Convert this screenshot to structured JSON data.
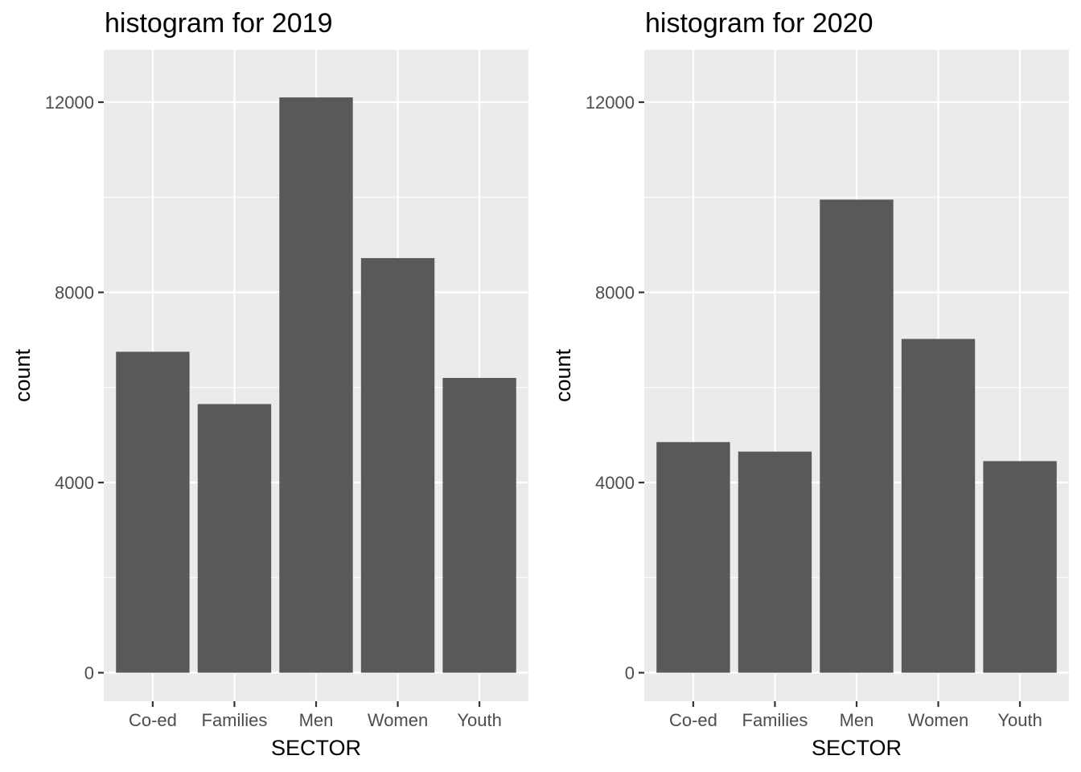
{
  "colors": {
    "panel_background": "#ebebeb",
    "grid_major": "#ffffff",
    "grid_minor": "#f5f5f5",
    "bar_fill": "#595959",
    "tick_text": "#4d4d4d",
    "tick_mark": "#333333"
  },
  "chart_data": [
    {
      "type": "bar",
      "title": "histogram for 2019",
      "xlabel": "SECTOR",
      "ylabel": "count",
      "categories": [
        "Co-ed",
        "Families",
        "Men",
        "Women",
        "Youth"
      ],
      "values": [
        6750,
        5650,
        12100,
        8720,
        6200
      ],
      "ylim": [
        -600,
        13100
      ],
      "yticks": [
        0,
        4000,
        8000,
        12000
      ],
      "ytick_labels": [
        "0",
        "4000",
        "8000",
        "12000"
      ],
      "grid": true
    },
    {
      "type": "bar",
      "title": "histogram for 2020",
      "xlabel": "SECTOR",
      "ylabel": "count",
      "categories": [
        "Co-ed",
        "Families",
        "Men",
        "Women",
        "Youth"
      ],
      "values": [
        4850,
        4650,
        9950,
        7020,
        4450
      ],
      "ylim": [
        -600,
        13100
      ],
      "yticks": [
        0,
        4000,
        8000,
        12000
      ],
      "ytick_labels": [
        "0",
        "4000",
        "8000",
        "12000"
      ],
      "grid": true
    }
  ]
}
